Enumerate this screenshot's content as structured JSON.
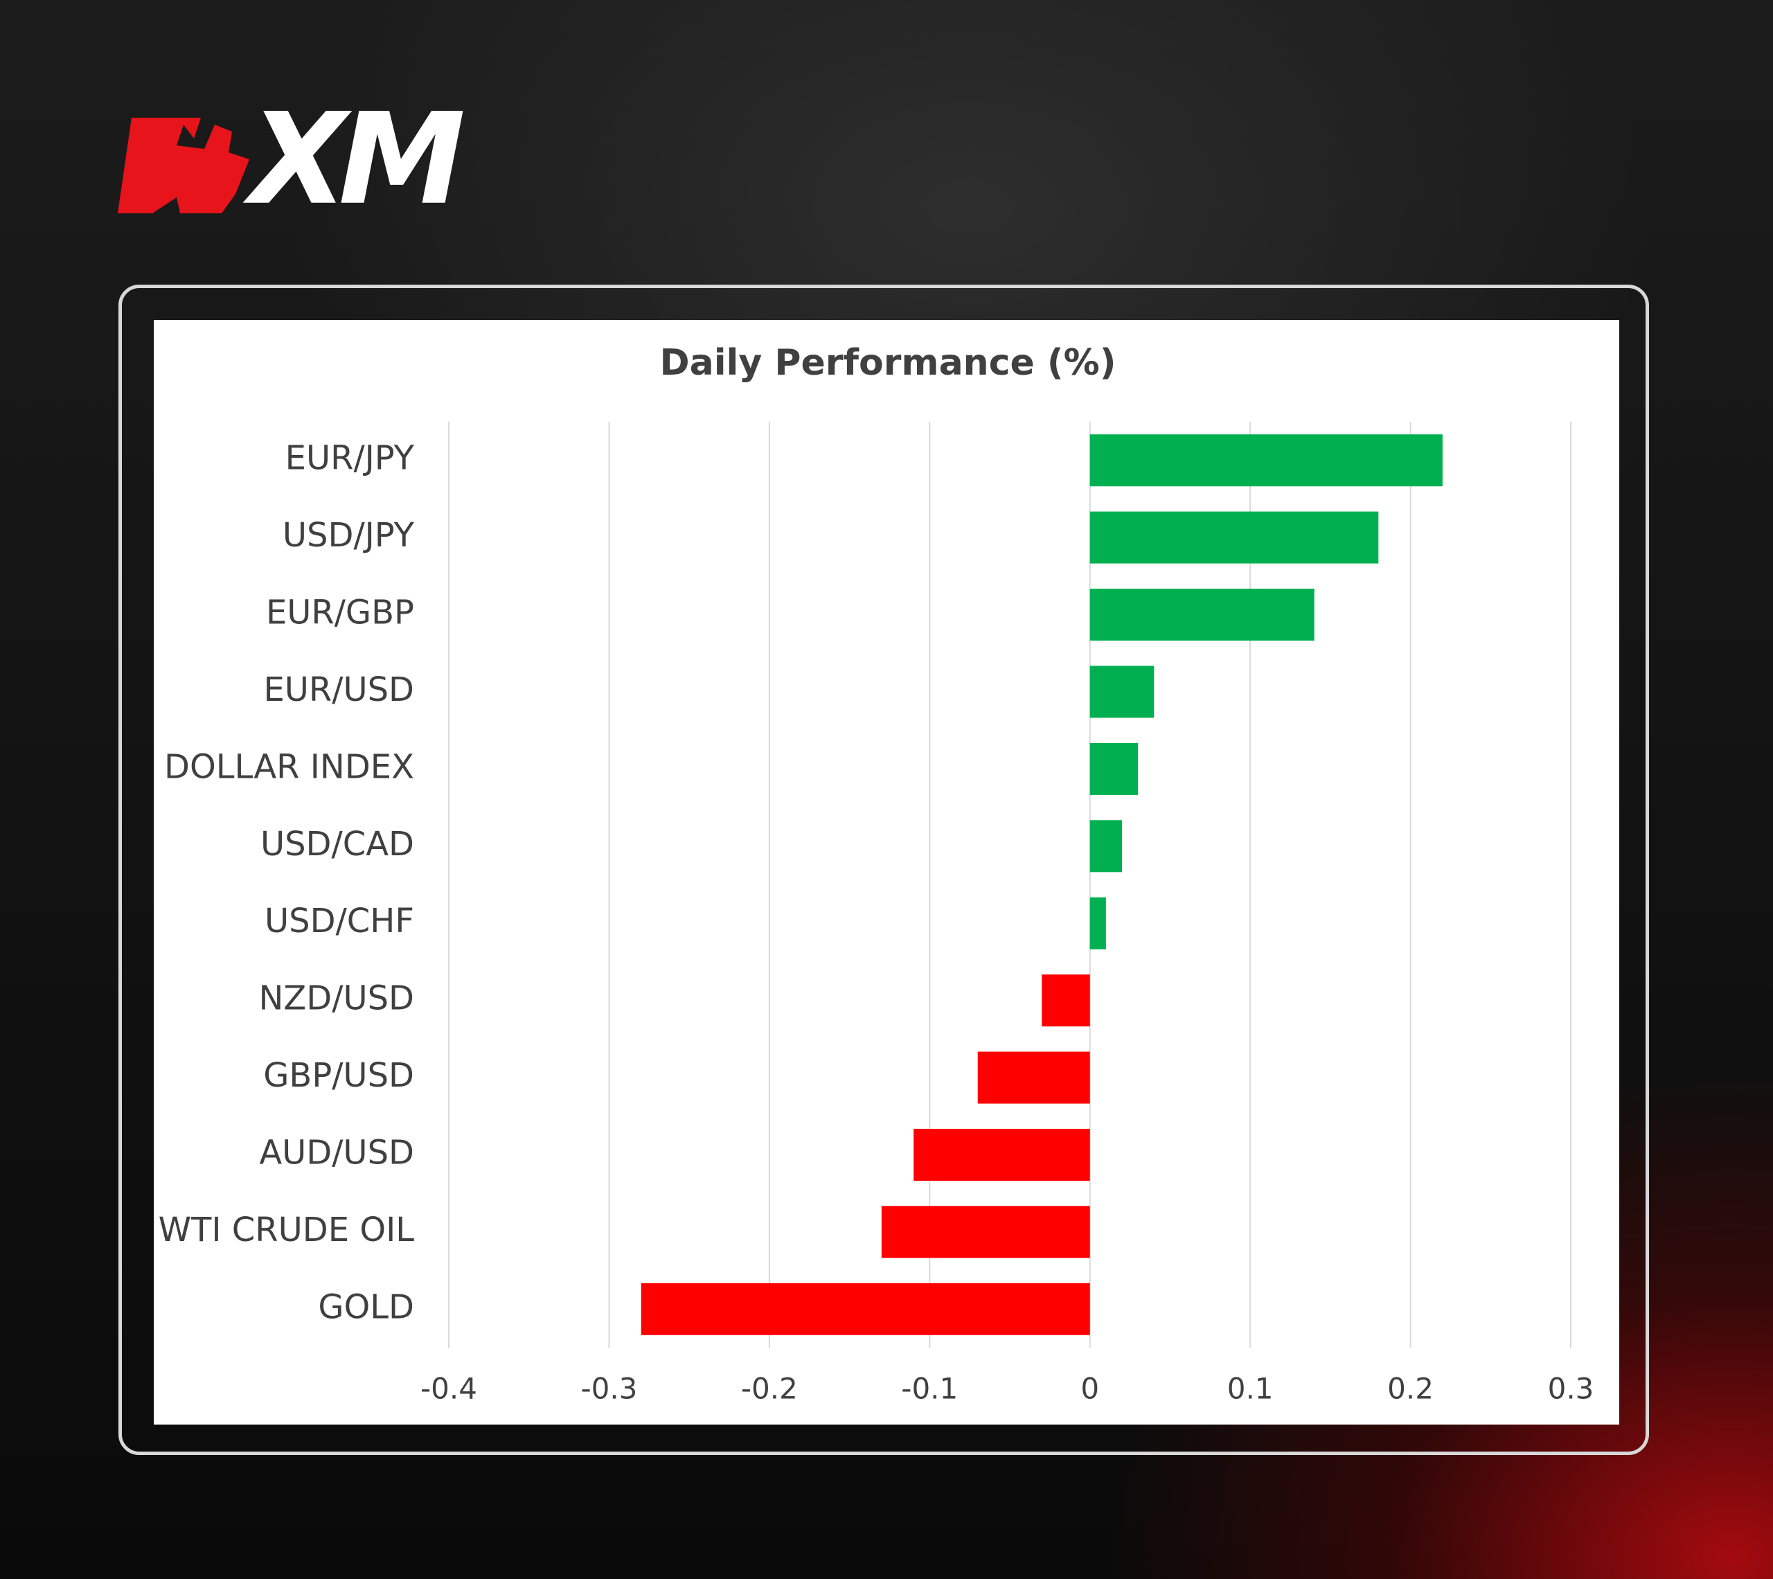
{
  "logo": "XM",
  "chart_data": {
    "type": "barh",
    "title": "Daily Performance (%)",
    "categories": [
      "EUR/JPY",
      "USD/JPY",
      "EUR/GBP",
      "EUR/USD",
      "DOLLAR INDEX",
      "USD/CAD",
      "USD/CHF",
      "NZD/USD",
      "GBP/USD",
      "AUD/USD",
      "WTI CRUDE OIL",
      "GOLD"
    ],
    "values": [
      0.22,
      0.18,
      0.14,
      0.04,
      0.03,
      0.02,
      0.01,
      -0.03,
      -0.07,
      -0.11,
      -0.13,
      -0.28
    ],
    "colors": [
      "#00b050",
      "#00b050",
      "#00b050",
      "#00b050",
      "#00b050",
      "#00b050",
      "#00b050",
      "#ff0000",
      "#ff0000",
      "#ff0000",
      "#ff0000",
      "#ff0000"
    ],
    "xlim": [
      -0.4,
      0.3
    ],
    "xticks": [
      -0.4,
      -0.3,
      -0.2,
      -0.1,
      0,
      0.1,
      0.2,
      0.3
    ],
    "grid": true
  }
}
